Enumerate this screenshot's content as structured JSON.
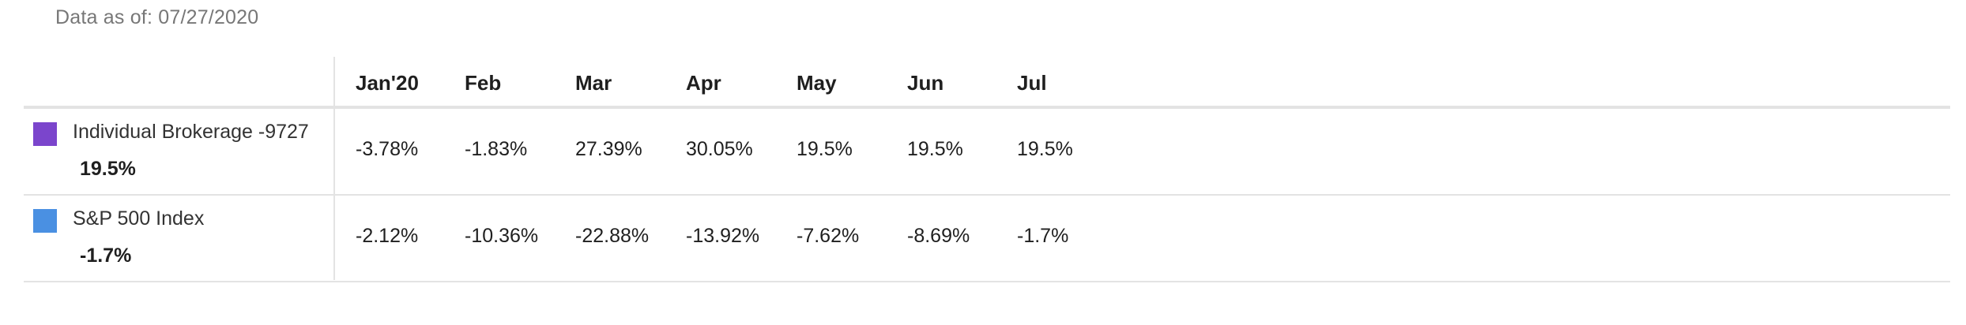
{
  "data_as_of": "Data as of: 07/27/2020",
  "columns": [
    "Jan'20",
    "Feb",
    "Mar",
    "Apr",
    "May",
    "Jun",
    "Jul"
  ],
  "rows": [
    {
      "name": "Individual Brokerage -9727",
      "summary": "19.5%",
      "swatch_color": "#7b45cc",
      "values": [
        "-3.78%",
        "-1.83%",
        "27.39%",
        "30.05%",
        "19.5%",
        "19.5%",
        "19.5%"
      ]
    },
    {
      "name": "S&P 500 Index",
      "summary": "-1.7%",
      "swatch_color": "#4a90e2",
      "values": [
        "-2.12%",
        "-10.36%",
        "-22.88%",
        "-13.92%",
        "-7.62%",
        "-8.69%",
        "-1.7%"
      ]
    }
  ]
}
